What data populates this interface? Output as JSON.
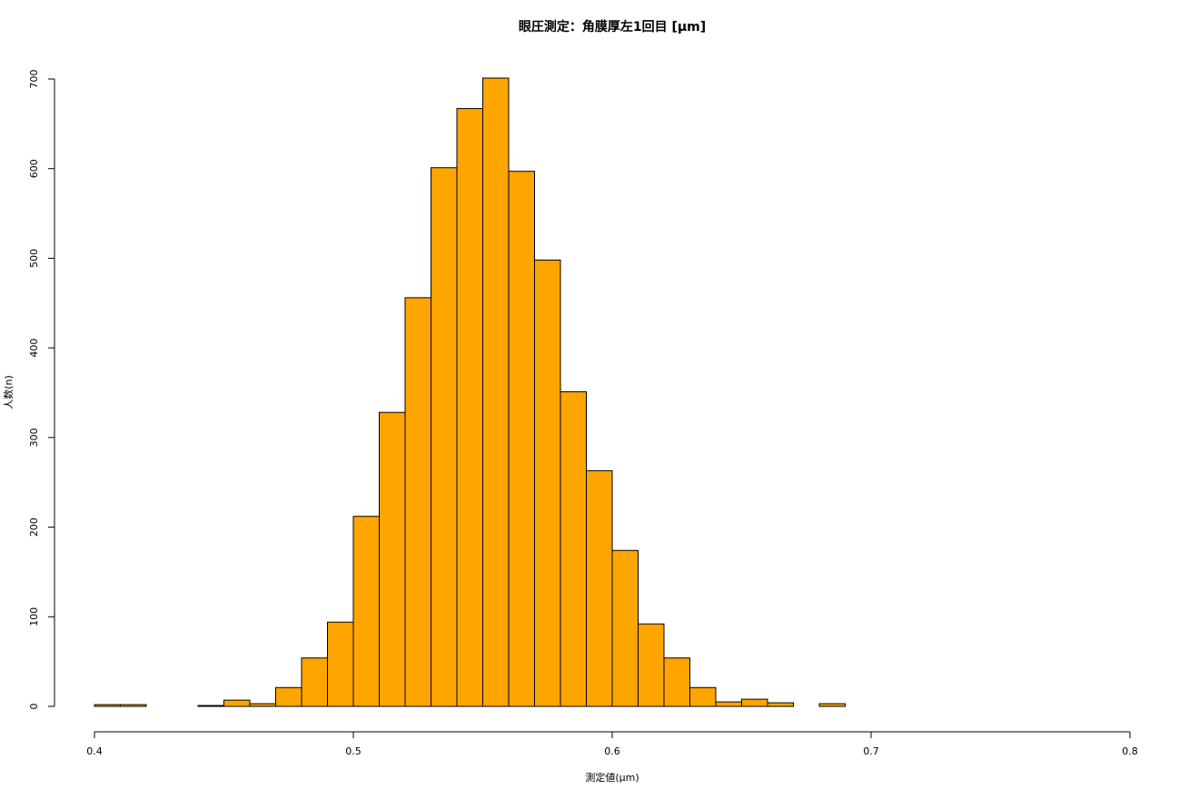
{
  "chart_data": {
    "type": "histogram",
    "title": "眼圧測定：角膜厚左1回目 [μm]",
    "x_label": "測定値(μm)",
    "y_label": "人数(n)",
    "bins": [
      0.4,
      0.41,
      0.42,
      0.43,
      0.44,
      0.45,
      0.46,
      0.47,
      0.48,
      0.49,
      0.5,
      0.51,
      0.52,
      0.53,
      0.54,
      0.55,
      0.56,
      0.57,
      0.58,
      0.59,
      0.6,
      0.61,
      0.62,
      0.63,
      0.64,
      0.65,
      0.66,
      0.67,
      0.68,
      0.69
    ],
    "counts": [
      2,
      2,
      0,
      0,
      1,
      7,
      3,
      21,
      54,
      94,
      212,
      328,
      456,
      601,
      667,
      701,
      597,
      498,
      351,
      263,
      174,
      92,
      54,
      21,
      5,
      8,
      4,
      0,
      3
    ],
    "color": "#ffa500",
    "xlim": [
      0.4,
      0.8
    ],
    "xticks": [
      0.4,
      0.5,
      0.6,
      0.7,
      0.8
    ],
    "ylim": [
      0,
      700
    ],
    "yticks": [
      0,
      100,
      200,
      300,
      400,
      500,
      600,
      700
    ]
  }
}
